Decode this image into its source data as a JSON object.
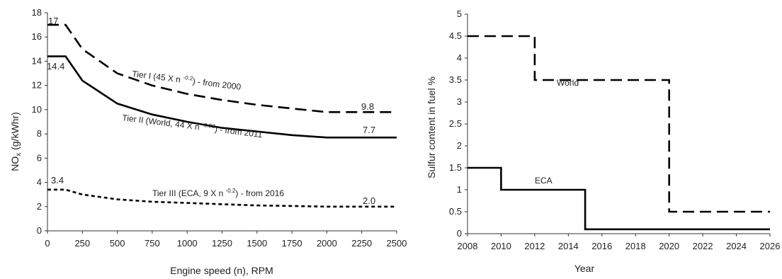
{
  "chart_data": [
    {
      "type": "line",
      "title": "",
      "xlabel": "Engine speed (n), RPM",
      "ylabel_main": "NO",
      "ylabel_sub": "x",
      "ylabel_rest": " (g/kWhr)",
      "xlim": [
        0,
        2500
      ],
      "ylim": [
        0,
        18
      ],
      "xticks": [
        "0",
        "250",
        "500",
        "750",
        "1000",
        "1250",
        "1500",
        "1750",
        "2000",
        "2250",
        "2500"
      ],
      "yticks": [
        "0",
        "2",
        "4",
        "6",
        "8",
        "10",
        "12",
        "14",
        "16",
        "18"
      ],
      "grid": false,
      "series": [
        {
          "name": "Tier I (45 X n -0.2) - from 2000",
          "style": "long-dash",
          "x": [
            0,
            130,
            250,
            500,
            750,
            1000,
            1250,
            1500,
            1750,
            2000,
            2500
          ],
          "y": [
            17,
            17,
            15.0,
            13.0,
            12.0,
            11.3,
            10.8,
            10.4,
            10.1,
            9.8,
            9.8
          ]
        },
        {
          "name": "Tier II (World, 44 X n -0.23) - from 2011",
          "style": "solid",
          "x": [
            0,
            130,
            250,
            500,
            750,
            1000,
            1250,
            1500,
            1750,
            2000,
            2500
          ],
          "y": [
            14.4,
            14.4,
            12.4,
            10.5,
            9.6,
            9.0,
            8.5,
            8.2,
            7.9,
            7.7,
            7.7
          ]
        },
        {
          "name": "Tier III (ECA, 9 X n -0.2) - from 2016",
          "style": "short-dash",
          "x": [
            0,
            130,
            250,
            500,
            750,
            1000,
            1250,
            1500,
            1750,
            2000,
            2500
          ],
          "y": [
            3.4,
            3.4,
            3.0,
            2.6,
            2.4,
            2.3,
            2.2,
            2.1,
            2.05,
            2.0,
            2.0
          ]
        }
      ],
      "labels": {
        "tier1_start": "17",
        "tier2_start": "14.4",
        "tier3_start": "3.4",
        "tier1_end": "9.8",
        "tier2_end": "7.7",
        "tier3_end": "2.0",
        "tier1": {
          "pre": "Tier I (45 X n ",
          "exp": "-0.2",
          "post": ") - from 2000"
        },
        "tier2": {
          "pre": "Tier II (World, 44 X n ",
          "exp": "-0.23",
          "post": ") - from  2011"
        },
        "tier3": {
          "pre": "Tier III (ECA, 9 X n ",
          "exp": "-0.2",
          "post": ") - from  2016"
        }
      }
    },
    {
      "type": "line",
      "title": "",
      "xlabel": "Year",
      "ylabel": "Sulfur content in fuel %",
      "xlim": [
        2008,
        2026
      ],
      "ylim": [
        0,
        5
      ],
      "xticks": [
        "2008",
        "2010",
        "2012",
        "2014",
        "2016",
        "2018",
        "2020",
        "2022",
        "2024",
        "2026"
      ],
      "yticks": [
        "0",
        "0.5",
        "1",
        "1.5",
        "2",
        "2.5",
        "3",
        "3.5",
        "4",
        "4.5",
        "5"
      ],
      "grid": false,
      "series": [
        {
          "name": "World",
          "style": "long-dash",
          "x": [
            2008,
            2012,
            2012,
            2020,
            2020,
            2026
          ],
          "y": [
            4.5,
            4.5,
            3.5,
            3.5,
            0.5,
            0.5
          ]
        },
        {
          "name": "ECA",
          "style": "solid",
          "x": [
            2008,
            2010,
            2010,
            2015,
            2015,
            2026
          ],
          "y": [
            1.5,
            1.5,
            1.0,
            1.0,
            0.1,
            0.1
          ]
        }
      ]
    }
  ]
}
